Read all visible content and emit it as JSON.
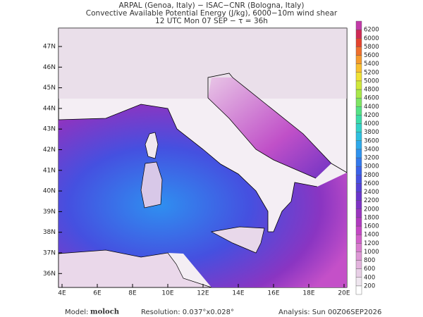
{
  "header": {
    "lines": [
      "ARPAL (Genoa, Italy)  −  ISAC−CNR (Bologna, Italy)",
      "Convective Available Potential Energy (J/kg), 6000−10m wind shear",
      "12 UTC Mon 07 SEP  −  τ = 36h"
    ]
  },
  "map": {
    "lat_labels": [
      "47N",
      "46N",
      "45N",
      "44N",
      "43N",
      "42N",
      "41N",
      "40N",
      "39N",
      "38N",
      "37N",
      "36N"
    ],
    "lon_labels": [
      "4E",
      "6E",
      "8E",
      "10E",
      "12E",
      "14E",
      "16E",
      "18E",
      "20E"
    ]
  },
  "colorbar": {
    "labels": [
      200,
      400,
      600,
      800,
      1000,
      1200,
      1400,
      1600,
      1800,
      2000,
      2200,
      2400,
      2600,
      2800,
      3000,
      3200,
      3400,
      3600,
      3800,
      4000,
      4200,
      4400,
      4600,
      4800,
      5000,
      5200,
      5400,
      5600,
      5800,
      6000,
      6200
    ],
    "colors": [
      "#ffffff",
      "#efe6ef",
      "#e8cfe6",
      "#e3b4dd",
      "#de98d6",
      "#d97dcf",
      "#d160c9",
      "#c447c4",
      "#b03abf",
      "#9a35bf",
      "#7f33c4",
      "#6a35cc",
      "#5540d6",
      "#4650e0",
      "#3a62e8",
      "#3379ec",
      "#2f92ee",
      "#2ea9ea",
      "#2fc0e0",
      "#34d2c8",
      "#3ddca8",
      "#55e285",
      "#7ee563",
      "#a8e84a",
      "#cfe83b",
      "#f0e236",
      "#f8c030",
      "#f59a2d",
      "#ef6f2d",
      "#e4432f",
      "#cf2a55",
      "#c23aa8"
    ]
  },
  "footer": {
    "model_label": "Model:",
    "model": "moloch",
    "resolution": "Resolution: 0.037°x0.028°",
    "analysis": "Analysis: Sun 00Z06SEP2026"
  }
}
